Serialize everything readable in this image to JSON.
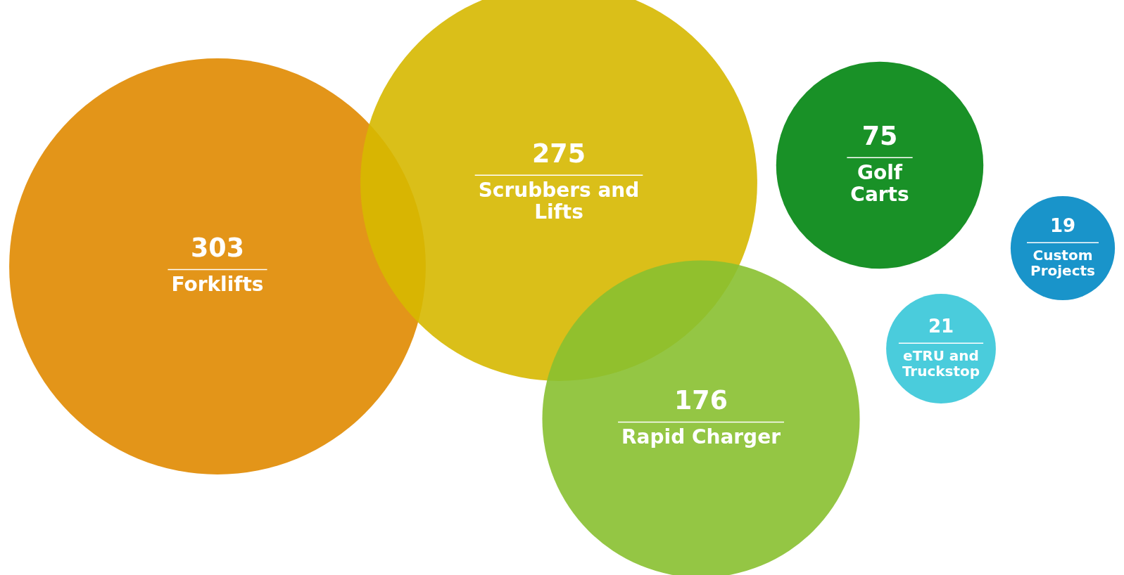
{
  "chart_data": {
    "type": "other",
    "categories": [
      "Forklifts",
      "Scrubbers and Lifts",
      "Rapid Charger",
      "Golf Carts",
      "eTRU and Truckstop",
      "Custom Projects"
    ],
    "values": [
      303,
      275,
      176,
      75,
      21,
      19
    ],
    "colors": [
      "#e08a00",
      "#d6b800",
      "#88c030",
      "#008510",
      "#36c6d8",
      "#0088c4"
    ],
    "data_labels": true
  }
}
